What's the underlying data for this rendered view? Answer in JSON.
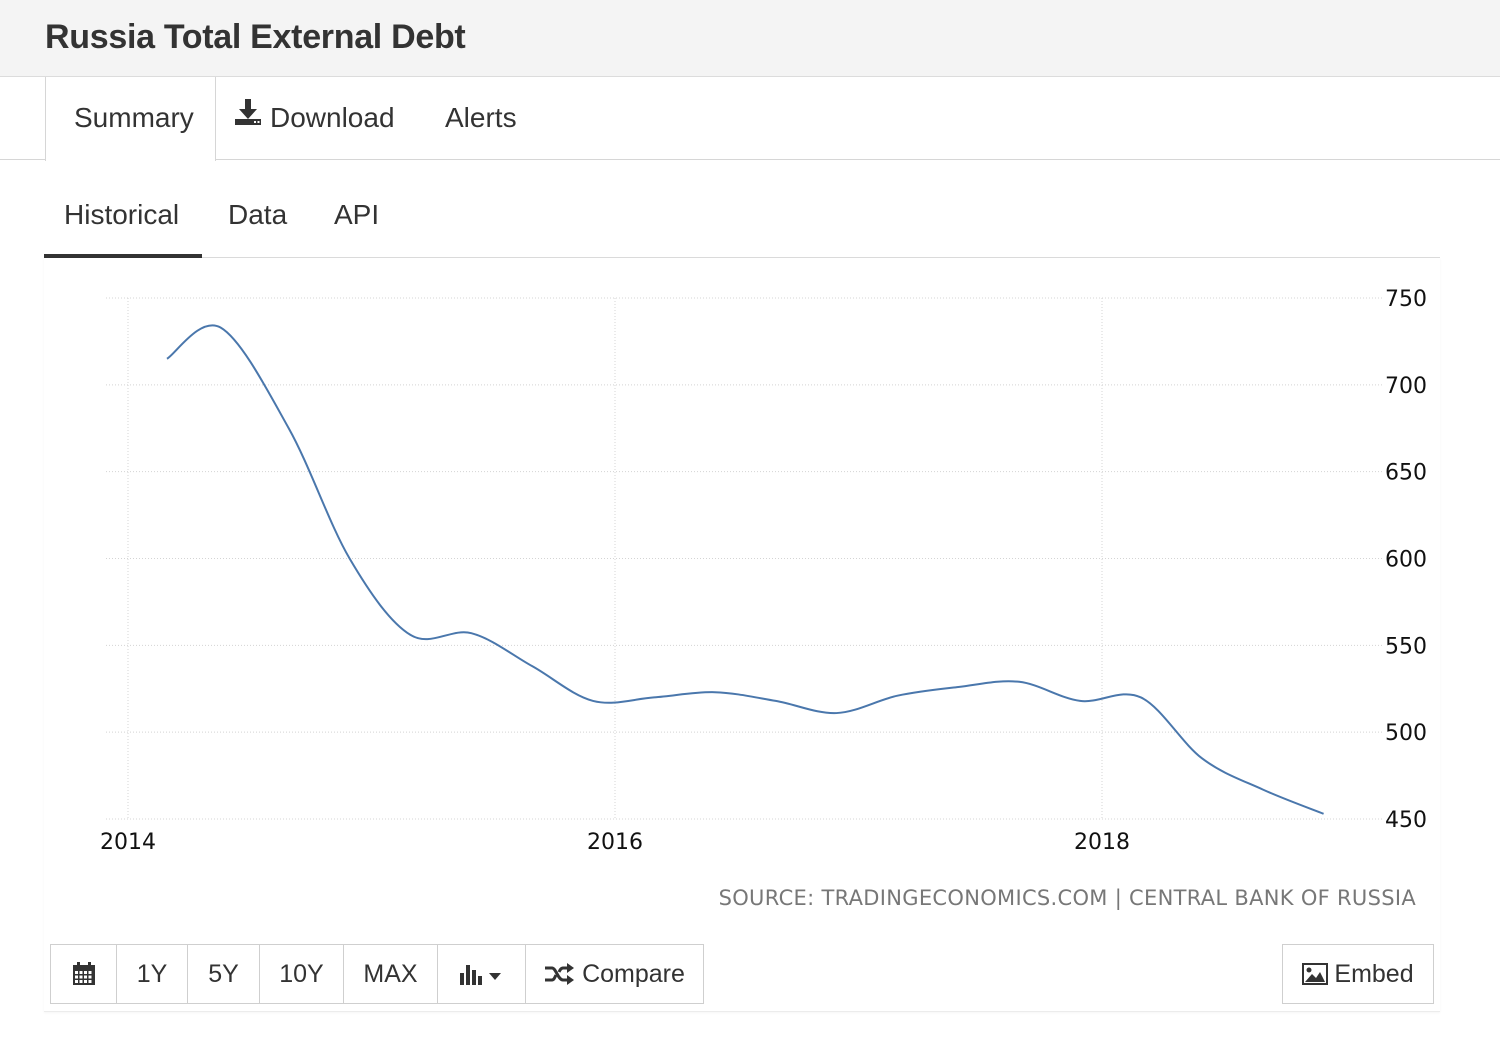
{
  "page": {
    "title": "Russia Total External Debt"
  },
  "main_tabs": [
    {
      "label": "Summary",
      "active": true
    },
    {
      "label": "Download",
      "icon": "download-icon",
      "active": false
    },
    {
      "label": "Alerts",
      "active": false
    }
  ],
  "sub_tabs": [
    {
      "label": "Historical",
      "active": true
    },
    {
      "label": "Data",
      "active": false
    },
    {
      "label": "API",
      "active": false
    }
  ],
  "chart_data": {
    "type": "line",
    "title": "",
    "xlabel": "",
    "ylabel": "",
    "x_ticks": [
      "2014",
      "2016",
      "2018"
    ],
    "y_ticks": [
      450,
      500,
      550,
      600,
      650,
      700,
      750
    ],
    "xlim": [
      2014.0,
      2019.2
    ],
    "ylim": [
      450,
      750
    ],
    "y_axis_side": "right",
    "grid": true,
    "line_color": "#4a77ac",
    "series": [
      {
        "x": [
          2014.16,
          2014.38,
          2014.66,
          2014.91,
          2015.16,
          2015.41,
          2015.66,
          2015.91,
          2016.16,
          2016.41,
          2016.66,
          2016.91,
          2017.16,
          2017.41,
          2017.66,
          2017.91,
          2018.16,
          2018.41,
          2018.66,
          2018.91
        ],
        "values": [
          715,
          733,
          675,
          600,
          556,
          557,
          538,
          518,
          520,
          523,
          518,
          511,
          521,
          526,
          529,
          518,
          520,
          485,
          467,
          453
        ]
      }
    ]
  },
  "source_text": "SOURCE: TRADINGECONOMICS.COM | CENTRAL BANK OF RUSSIA",
  "toolbar": {
    "calendar_icon": "calendar-icon",
    "ranges": [
      "1Y",
      "5Y",
      "10Y",
      "MAX"
    ],
    "chart_type_icon": "bar-chart-icon",
    "compare_label": "Compare",
    "embed_label": "Embed"
  }
}
